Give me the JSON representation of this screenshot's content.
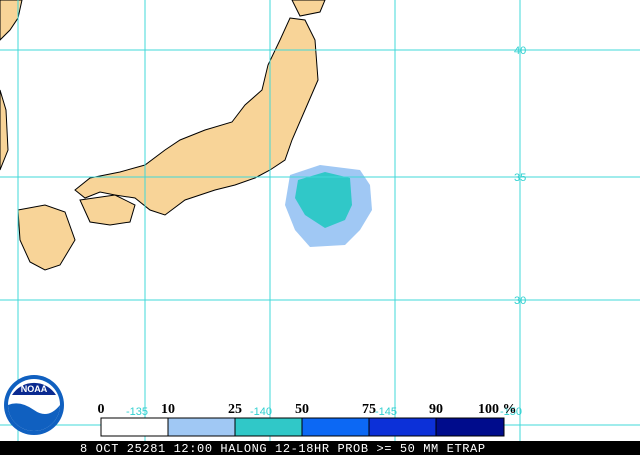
{
  "map": {
    "lat_labels": [
      "40",
      "35",
      "30"
    ],
    "lon_labels": [
      "-135",
      "-140",
      "-145",
      "-150"
    ],
    "legend": {
      "labels": [
        "0",
        "10",
        "25",
        "50",
        "75",
        "90",
        "100 %"
      ],
      "colors": [
        "#ffffff",
        "#a0c8f4",
        "#30c8c8",
        "#0c68f4",
        "#0c30d8",
        "#000c8c"
      ]
    },
    "logo": "NOAA",
    "footer": "8 OCT 25281 12:00 HALONG 12-18HR PROB >= 50 MM ETRAP"
  }
}
